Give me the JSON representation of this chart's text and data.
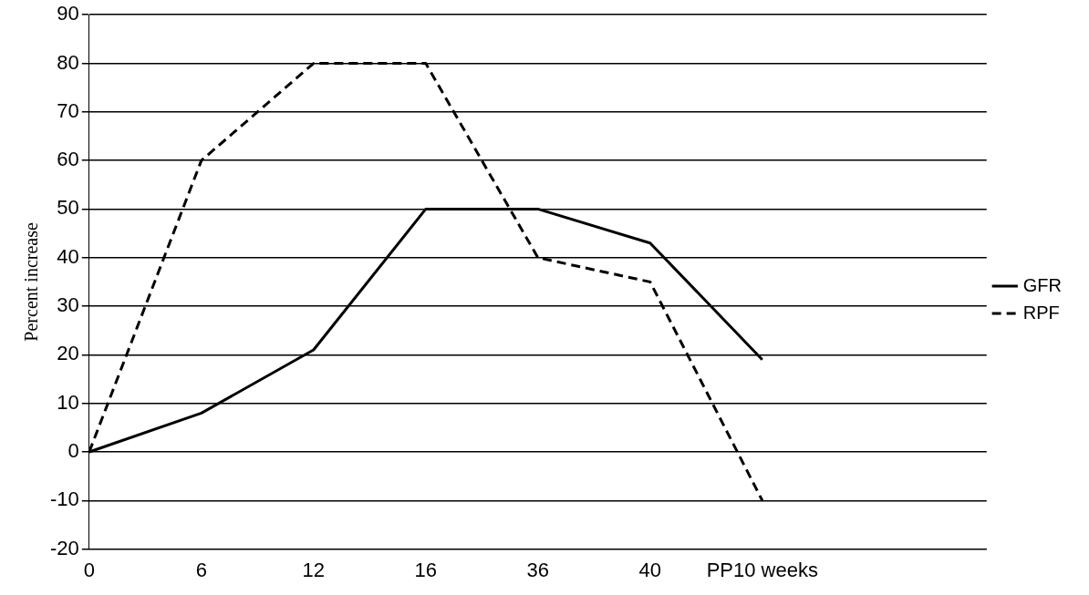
{
  "chart_data": {
    "type": "line",
    "ylabel": "Percent increase",
    "categories": [
      "0",
      "6",
      "12",
      "16",
      "36",
      "40",
      "PP10 weeks",
      null,
      null
    ],
    "series": [
      {
        "name": "GFR",
        "color": "#000000",
        "line_style": "solid",
        "values": [
          0,
          8,
          21,
          50,
          50,
          43,
          19,
          null,
          null
        ]
      },
      {
        "name": "RPF",
        "color": "#000000",
        "line_style": "dashed",
        "values": [
          0,
          60,
          80,
          80,
          40,
          35,
          -10,
          null,
          null
        ]
      }
    ],
    "ylim": [
      -20,
      90
    ],
    "yticks": [
      -20,
      -10,
      0,
      10,
      20,
      30,
      40,
      50,
      60,
      70,
      80,
      90
    ],
    "grid": "y",
    "legend": "right",
    "marker": "none"
  }
}
